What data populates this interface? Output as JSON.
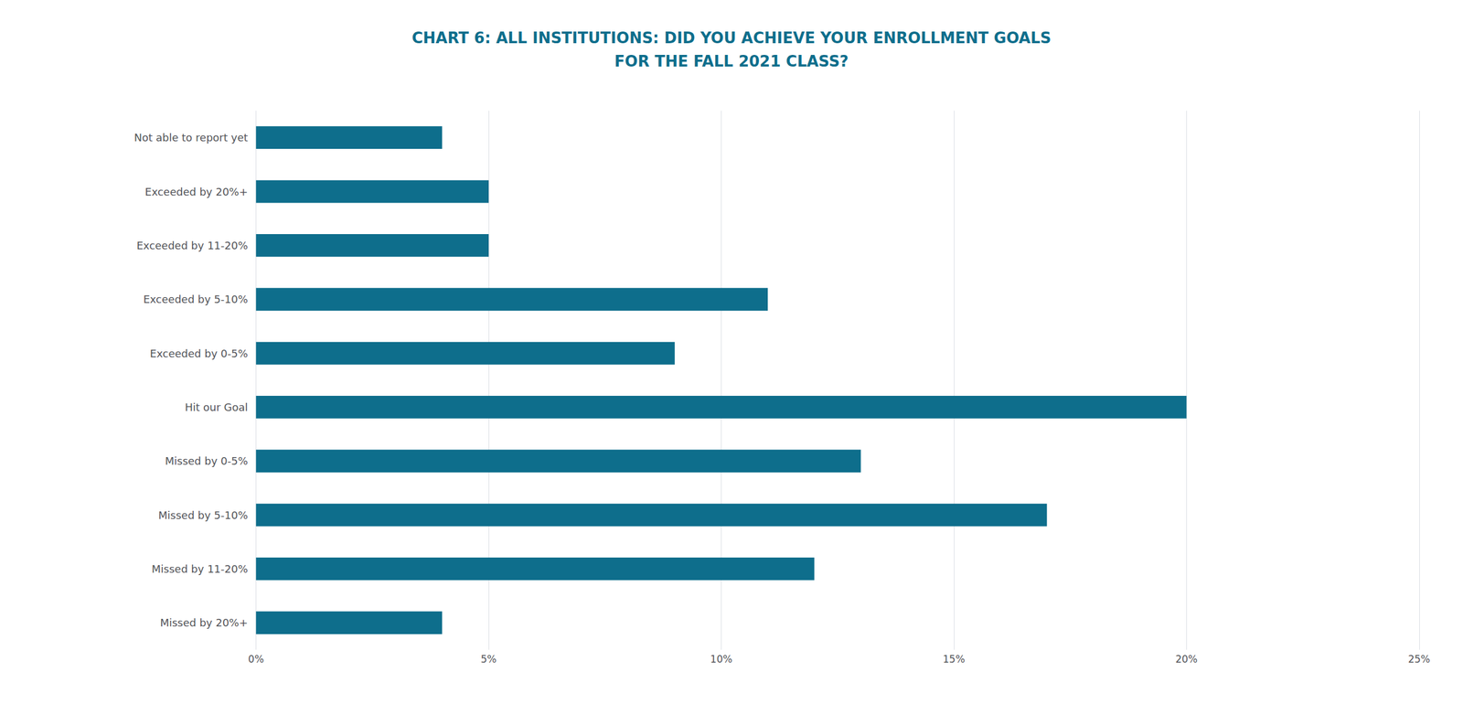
{
  "chart_data": {
    "type": "bar",
    "orientation": "horizontal",
    "title": "CHART 6: ALL INSTITUTIONS: DID YOU ACHIEVE YOUR ENROLLMENT GOALS\nFOR THE FALL 2021 CLASS?",
    "categories": [
      "Not able to report yet",
      "Exceeded by 20%+",
      "Exceeded by 11-20%",
      "Exceeded by 5-10%",
      "Exceeded by 0-5%",
      "Hit our Goal",
      "Missed by 0-5%",
      "Missed by 5-10%",
      "Missed by 11-20%",
      "Missed by 20%+"
    ],
    "values": [
      4,
      5,
      5,
      11,
      9,
      20,
      13,
      17,
      12,
      4
    ],
    "color": "#0e6e8c",
    "xlim": [
      0,
      25
    ],
    "xticks": [
      {
        "value": 0,
        "label": "0%"
      },
      {
        "value": 5,
        "label": "5%"
      },
      {
        "value": 10,
        "label": "10%"
      },
      {
        "value": 15,
        "label": "15%"
      },
      {
        "value": 20,
        "label": "20%"
      },
      {
        "value": 25,
        "label": "25%"
      }
    ],
    "grid": true
  }
}
